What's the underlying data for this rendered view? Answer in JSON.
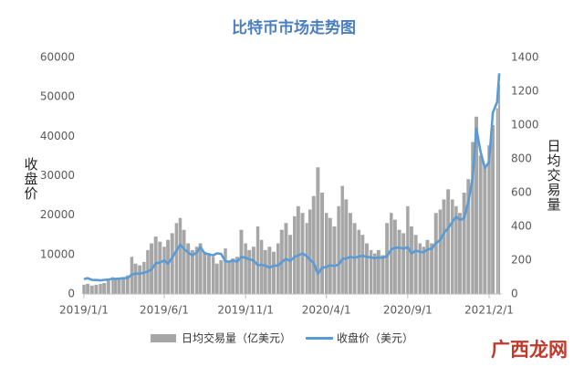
{
  "chart_data": {
    "type": "bar-line",
    "title": "比特币市场走势图",
    "ylabel": "收盘价",
    "y2label": "日均交易量",
    "x": [
      "2019/1/1",
      "2019/1/8",
      "2019/1/16",
      "2019/1/24",
      "2019/2/1",
      "2019/2/8",
      "2019/2/16",
      "2019/2/24",
      "2019/3/1",
      "2019/3/8",
      "2019/3/16",
      "2019/3/24",
      "2019/4/1",
      "2019/4/8",
      "2019/4/16",
      "2019/4/24",
      "2019/5/1",
      "2019/5/8",
      "2019/5/16",
      "2019/5/24",
      "2019/6/1",
      "2019/6/8",
      "2019/6/16",
      "2019/6/24",
      "2019/7/1",
      "2019/7/8",
      "2019/7/16",
      "2019/7/24",
      "2019/8/1",
      "2019/8/8",
      "2019/8/16",
      "2019/8/24",
      "2019/9/1",
      "2019/9/8",
      "2019/9/16",
      "2019/9/24",
      "2019/10/1",
      "2019/10/8",
      "2019/10/16",
      "2019/10/24",
      "2019/11/1",
      "2019/11/8",
      "2019/11/16",
      "2019/11/24",
      "2019/12/1",
      "2019/12/8",
      "2019/12/16",
      "2019/12/24",
      "2020/1/1",
      "2020/1/8",
      "2020/1/16",
      "2020/1/24",
      "2020/2/1",
      "2020/2/8",
      "2020/2/16",
      "2020/2/24",
      "2020/3/1",
      "2020/3/8",
      "2020/3/16",
      "2020/3/24",
      "2020/4/1",
      "2020/4/8",
      "2020/4/16",
      "2020/4/24",
      "2020/5/1",
      "2020/5/8",
      "2020/5/16",
      "2020/5/24",
      "2020/6/1",
      "2020/6/8",
      "2020/6/16",
      "2020/6/24",
      "2020/7/1",
      "2020/7/8",
      "2020/7/16",
      "2020/7/24",
      "2020/8/1",
      "2020/8/8",
      "2020/8/16",
      "2020/8/24",
      "2020/9/1",
      "2020/9/8",
      "2020/9/16",
      "2020/9/24",
      "2020/10/1",
      "2020/10/8",
      "2020/10/16",
      "2020/10/24",
      "2020/11/1",
      "2020/11/8",
      "2020/11/16",
      "2020/11/24",
      "2020/12/1",
      "2020/12/8",
      "2020/12/16",
      "2020/12/24",
      "2021/1/1",
      "2021/1/8",
      "2021/1/16",
      "2021/1/24",
      "2021/2/1",
      "2021/2/8",
      "2021/2/16",
      "2021/2/20"
    ],
    "series": [
      {
        "name": "日均交易量（亿美元）",
        "color": "#a6a6a6",
        "kind": "bar",
        "axis": "y2",
        "values": [
          55,
          60,
          50,
          55,
          60,
          65,
          80,
          100,
          90,
          95,
          100,
          110,
          220,
          180,
          170,
          190,
          260,
          300,
          340,
          310,
          280,
          320,
          360,
          420,
          450,
          380,
          300,
          260,
          280,
          300,
          250,
          230,
          220,
          180,
          200,
          270,
          190,
          210,
          220,
          380,
          300,
          260,
          280,
          400,
          320,
          260,
          280,
          250,
          300,
          380,
          420,
          350,
          460,
          520,
          480,
          420,
          500,
          580,
          750,
          600,
          480,
          450,
          400,
          520,
          640,
          560,
          480,
          420,
          380,
          350,
          300,
          260,
          240,
          260,
          230,
          420,
          480,
          440,
          380,
          360,
          520,
          400,
          350,
          300,
          280,
          320,
          300,
          480,
          500,
          560,
          620,
          560,
          520,
          480,
          600,
          680,
          900,
          1050,
          820,
          760,
          880,
          1000,
          1100,
          1240
        ]
      },
      {
        "name": "收盘价（美元）",
        "color": "#5b9bd5",
        "kind": "line",
        "axis": "y",
        "values": [
          3800,
          4000,
          3600,
          3550,
          3450,
          3600,
          3650,
          3850,
          3850,
          3900,
          4000,
          4050,
          4900,
          5200,
          5150,
          5400,
          5700,
          6200,
          7800,
          8000,
          8500,
          7700,
          9200,
          11000,
          12500,
          11500,
          10500,
          9800,
          10500,
          11900,
          10300,
          10100,
          9800,
          10300,
          10200,
          8300,
          8200,
          8500,
          8200,
          9400,
          9200,
          8800,
          8500,
          7300,
          7400,
          7200,
          6700,
          7200,
          7200,
          8100,
          8900,
          8400,
          9400,
          9800,
          10300,
          9600,
          8700,
          7900,
          5100,
          6700,
          6800,
          7300,
          7100,
          7500,
          8900,
          9000,
          9400,
          9200,
          9500,
          9700,
          9400,
          9300,
          9100,
          9300,
          9200,
          9600,
          11300,
          11700,
          11800,
          11500,
          11900,
          10300,
          11000,
          10700,
          10600,
          11300,
          11500,
          12900,
          13700,
          15500,
          16700,
          18300,
          19600,
          18800,
          19200,
          23500,
          29400,
          42000,
          36000,
          32000,
          33500,
          46000,
          48700,
          56000
        ]
      }
    ],
    "xlim": [
      "2019/1/1",
      "2021/2/25"
    ],
    "xticks": [
      "2019/1/1",
      "2019/6/1",
      "2019/11/1",
      "2020/4/1",
      "2020/9/1",
      "2021/2/1"
    ],
    "ylim": [
      0,
      60000
    ],
    "yticks": [
      0,
      10000,
      20000,
      30000,
      40000,
      50000,
      60000
    ],
    "y2lim": [
      0,
      1400
    ],
    "y2ticks": [
      0,
      200,
      400,
      600,
      800,
      1000,
      1200,
      1400
    ]
  },
  "watermark": "广西龙网"
}
